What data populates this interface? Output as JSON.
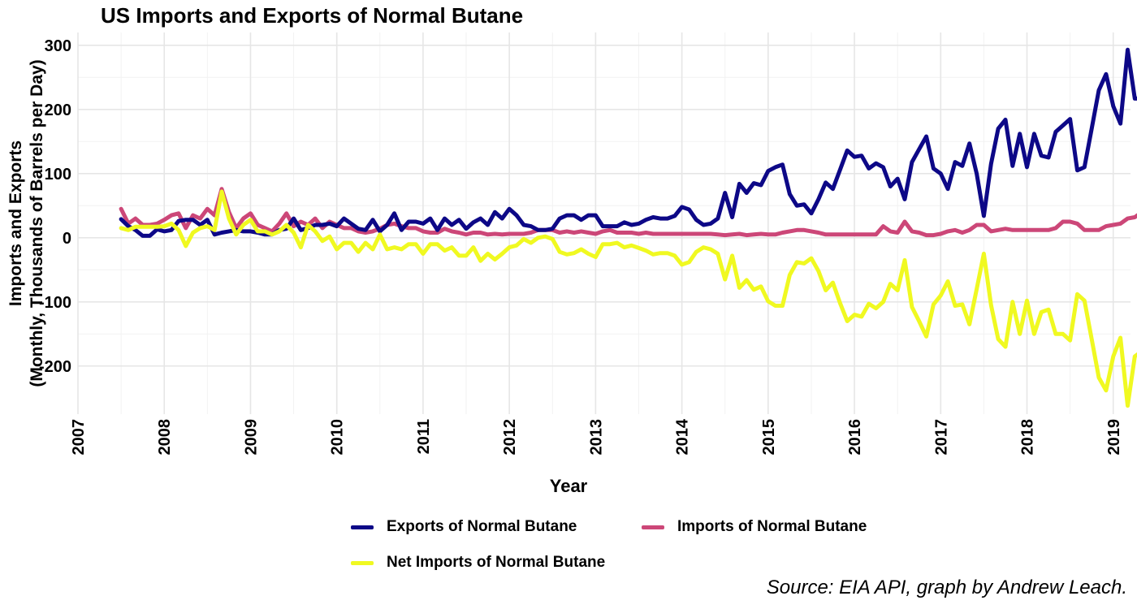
{
  "chart_data": {
    "type": "line",
    "title": "US Imports and Exports of Normal Butane",
    "xlabel": "Year",
    "ylabel_lines": [
      "Imports and Exports",
      "(Monthly, Thousands of Barrels per Day)"
    ],
    "caption": "Source: EIA API, graph by Andrew Leach.",
    "xlim": [
      2007.0,
      2019.2
    ],
    "ylim": [
      -275,
      320
    ],
    "x_ticks": [
      2007,
      2008,
      2009,
      2010,
      2011,
      2012,
      2013,
      2014,
      2015,
      2016,
      2017,
      2018,
      2019
    ],
    "y_ticks": [
      300,
      200,
      100,
      0,
      -100,
      -200
    ],
    "grid": true,
    "legend_position": "bottom",
    "x_start": 2007.5,
    "x_step_months": 1,
    "series": [
      {
        "name": "Exports of Normal Butane",
        "color": "#0d0887",
        "values": [
          29,
          18,
          12,
          3,
          3,
          13,
          10,
          12,
          26,
          28,
          28,
          20,
          28,
          5,
          8,
          10,
          12,
          10,
          10,
          8,
          5,
          5,
          12,
          14,
          30,
          12,
          15,
          20,
          20,
          22,
          18,
          30,
          22,
          14,
          12,
          28,
          10,
          20,
          38,
          12,
          25,
          25,
          22,
          30,
          12,
          30,
          20,
          28,
          14,
          24,
          30,
          20,
          40,
          30,
          45,
          35,
          20,
          18,
          12,
          12,
          14,
          30,
          35,
          35,
          28,
          35,
          35,
          18,
          18,
          18,
          24,
          20,
          22,
          28,
          32,
          30,
          30,
          34,
          48,
          44,
          28,
          20,
          22,
          30,
          70,
          32,
          84,
          70,
          85,
          82,
          104,
          110,
          114,
          68,
          50,
          52,
          38,
          60,
          86,
          76,
          106,
          136,
          126,
          128,
          108,
          116,
          110,
          80,
          92,
          60,
          118,
          138,
          158,
          108,
          100,
          76,
          118,
          112,
          147,
          100,
          34,
          115,
          170,
          184,
          112,
          162,
          110,
          162,
          128,
          125,
          165,
          175,
          185,
          105,
          110,
          170,
          230,
          255,
          205,
          178,
          293,
          217,
          217
        ]
      },
      {
        "name": "Imports of Normal Butane",
        "color": "#cc4778",
        "values": [
          45,
          22,
          30,
          20,
          20,
          22,
          28,
          35,
          38,
          15,
          35,
          30,
          45,
          35,
          76,
          40,
          15,
          30,
          38,
          20,
          15,
          10,
          22,
          38,
          18,
          25,
          20,
          30,
          15,
          25,
          20,
          15,
          15,
          10,
          8,
          10,
          14,
          20,
          22,
          18,
          15,
          15,
          10,
          8,
          8,
          14,
          10,
          8,
          5,
          8,
          8,
          5,
          6,
          5,
          6,
          6,
          6,
          8,
          12,
          12,
          12,
          8,
          10,
          8,
          10,
          8,
          6,
          10,
          12,
          8,
          8,
          8,
          6,
          8,
          6,
          6,
          6,
          6,
          6,
          6,
          6,
          6,
          6,
          5,
          4,
          5,
          6,
          4,
          5,
          6,
          5,
          5,
          8,
          10,
          12,
          12,
          10,
          8,
          5,
          5,
          5,
          5,
          5,
          5,
          5,
          5,
          18,
          10,
          8,
          25,
          10,
          8,
          4,
          4,
          6,
          10,
          12,
          8,
          12,
          20,
          20,
          10,
          12,
          14,
          12,
          12,
          12,
          12,
          12,
          12,
          15,
          25,
          25,
          22,
          12,
          12,
          12,
          18,
          20,
          22,
          30,
          32,
          40
        ]
      },
      {
        "name": "Net Imports of Normal Butane",
        "color": "#f0f921",
        "values": [
          15,
          12,
          17,
          17,
          17,
          17,
          18,
          22,
          12,
          -13,
          8,
          15,
          18,
          12,
          72,
          30,
          5,
          20,
          28,
          10,
          10,
          5,
          10,
          20,
          8,
          -15,
          20,
          10,
          -5,
          2,
          -18,
          -8,
          -8,
          -22,
          -8,
          -18,
          5,
          -18,
          -15,
          -18,
          -10,
          -10,
          -25,
          -10,
          -10,
          -20,
          -15,
          -28,
          -28,
          -15,
          -36,
          -25,
          -34,
          -25,
          -15,
          -12,
          -2,
          -8,
          0,
          2,
          -2,
          -22,
          -26,
          -24,
          -18,
          -25,
          -30,
          -10,
          -10,
          -8,
          -15,
          -12,
          -16,
          -20,
          -26,
          -24,
          -24,
          -28,
          -42,
          -38,
          -22,
          -15,
          -18,
          -25,
          -65,
          -28,
          -78,
          -66,
          -81,
          -76,
          -99,
          -106,
          -106,
          -58,
          -38,
          -40,
          -32,
          -52,
          -82,
          -70,
          -102,
          -130,
          -120,
          -123,
          -103,
          -110,
          -100,
          -72,
          -82,
          -35,
          -108,
          -130,
          -154,
          -104,
          -90,
          -68,
          -106,
          -104,
          -135,
          -80,
          -25,
          -105,
          -158,
          -170,
          -100,
          -150,
          -98,
          -150,
          -116,
          -112,
          -150,
          -150,
          -160,
          -88,
          -98,
          -158,
          -218,
          -238,
          -185,
          -156,
          -262,
          -185,
          -177
        ]
      }
    ]
  }
}
